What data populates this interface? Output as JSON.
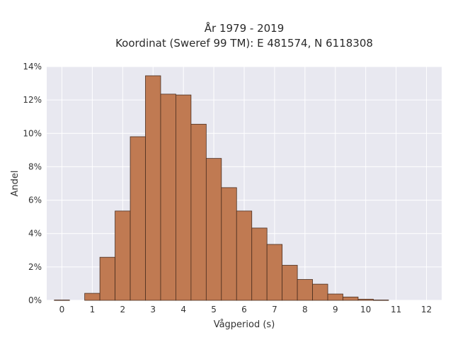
{
  "chart_data": {
    "type": "bar",
    "title_lines": [
      "År 1979 - 2019",
      "Koordinat (Sweref 99 TM): E 481574, N 6118308"
    ],
    "xlabel": "Vågperiod (s)",
    "ylabel": "Andel",
    "x_ticks": [
      "0",
      "1",
      "2",
      "3",
      "4",
      "5",
      "6",
      "7",
      "8",
      "9",
      "10",
      "11",
      "12"
    ],
    "y_ticks": [
      "0%",
      "2%",
      "4%",
      "6%",
      "8%",
      "10%",
      "12%",
      "14%"
    ],
    "xlim": [
      -0.5,
      12.5
    ],
    "ylim": [
      0,
      14
    ],
    "bin_width": 0.5,
    "bin_centers": [
      0,
      0.5,
      1,
      1.5,
      2,
      2.5,
      3,
      3.5,
      4,
      4.5,
      5,
      5.5,
      6,
      6.5,
      7,
      7.5,
      8,
      8.5,
      9,
      9.5,
      10,
      10.5,
      11,
      11.5,
      12
    ],
    "values": [
      0.02,
      0.0,
      0.42,
      2.58,
      5.35,
      9.8,
      13.45,
      12.35,
      12.3,
      10.55,
      8.5,
      6.75,
      5.35,
      4.33,
      3.35,
      2.1,
      1.25,
      0.97,
      0.38,
      0.2,
      0.07,
      0.02,
      0.0,
      0.0,
      0.0
    ],
    "grid": true,
    "legend": "none",
    "colors": {
      "bar_fill": "#c07a52",
      "bar_edge": "#4a2e1f",
      "plot_bg": "#e8e8f0",
      "grid": "#ffffff"
    }
  }
}
